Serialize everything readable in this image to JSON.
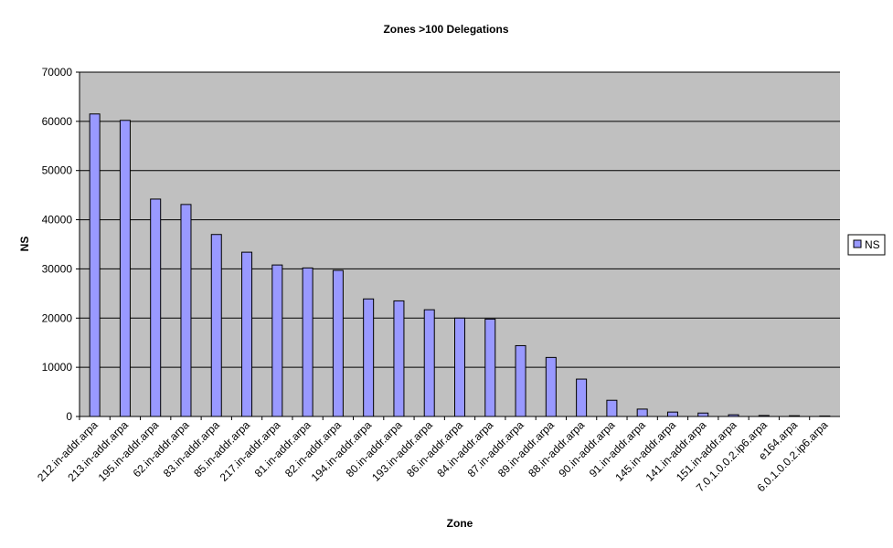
{
  "chart_data": {
    "type": "bar",
    "title": "Zones >100 Delegations",
    "x_label": "Zone",
    "y_label": "NS",
    "categories": [
      "212.in-addr.arpa",
      "213.in-addr.arpa",
      "195.in-addr.arpa",
      "62.in-addr.arpa",
      "83.in-addr.arpa",
      "85.in-addr.arpa",
      "217.in-addr.arpa",
      "81.in-addr.arpa",
      "82.in-addr.arpa",
      "194.in-addr.arpa",
      "80.in-addr.arpa",
      "193.in-addr.arpa",
      "86.in-addr.arpa",
      "84.in-addr.arpa",
      "87.in-addr.arpa",
      "89.in-addr.arpa",
      "88.in-addr.arpa",
      "90.in-addr.arpa",
      "91.in-addr.arpa",
      "145.in-addr.arpa",
      "141.in-addr.arpa",
      "151.in-addr.arpa",
      "7.0.1.0.0.2.ip6.arpa",
      "e164.arpa",
      "6.0.1.0.0.2.ip6.arpa"
    ],
    "series": [
      {
        "name": "NS",
        "color": "#9999ff",
        "values": [
          61500,
          60200,
          44200,
          43100,
          37000,
          33400,
          30800,
          30200,
          29700,
          23900,
          23500,
          21700,
          20000,
          19800,
          14400,
          12000,
          7600,
          3300,
          1500,
          900,
          700,
          350,
          200,
          150,
          100
        ]
      }
    ],
    "ylim": [
      0,
      70000
    ],
    "yticks": [
      0,
      10000,
      20000,
      30000,
      40000,
      50000,
      60000,
      70000
    ],
    "grid": true,
    "legend": "right"
  }
}
